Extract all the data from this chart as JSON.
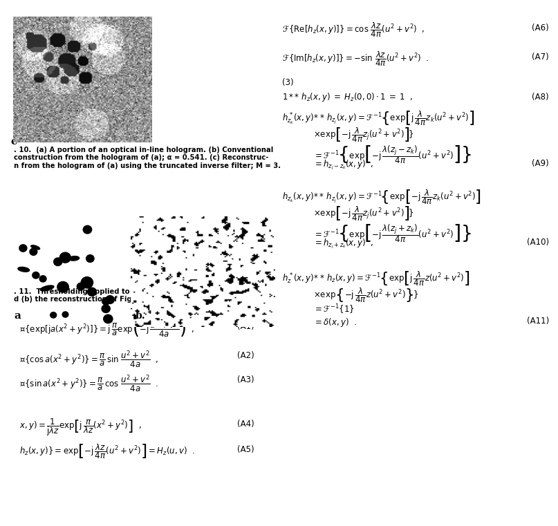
{
  "background_color": "#ffffff",
  "fig_width": 7.87,
  "fig_height": 7.42,
  "caption_fig10_lines": [
    ". 10.  (a) A portion of an optical in-line hologram. (b) Conventional",
    "construction from the hologram of (a); α = 0.541. (c) Reconstruc-",
    "n from the hologram of (a) using the truncated inverse filter; M = 3."
  ],
  "caption_fig11_lines": [
    ". 11.  Thresholding applied to (a) the reconstruction of Fig. 10(c)",
    "d (b) the reconstruction of Fig. 10(b)."
  ],
  "eq_labels_left": [
    "(A1)",
    "(A2)",
    "(A3)",
    "(A4)",
    "(A5)"
  ],
  "eq_labels_right": [
    "(A6)",
    "(A7)",
    "(A8)",
    "(A9)",
    "(A10)",
    "(A11)"
  ],
  "font_size_caption": 7.2,
  "font_size_eq": 8.5,
  "font_size_label": 8.5
}
